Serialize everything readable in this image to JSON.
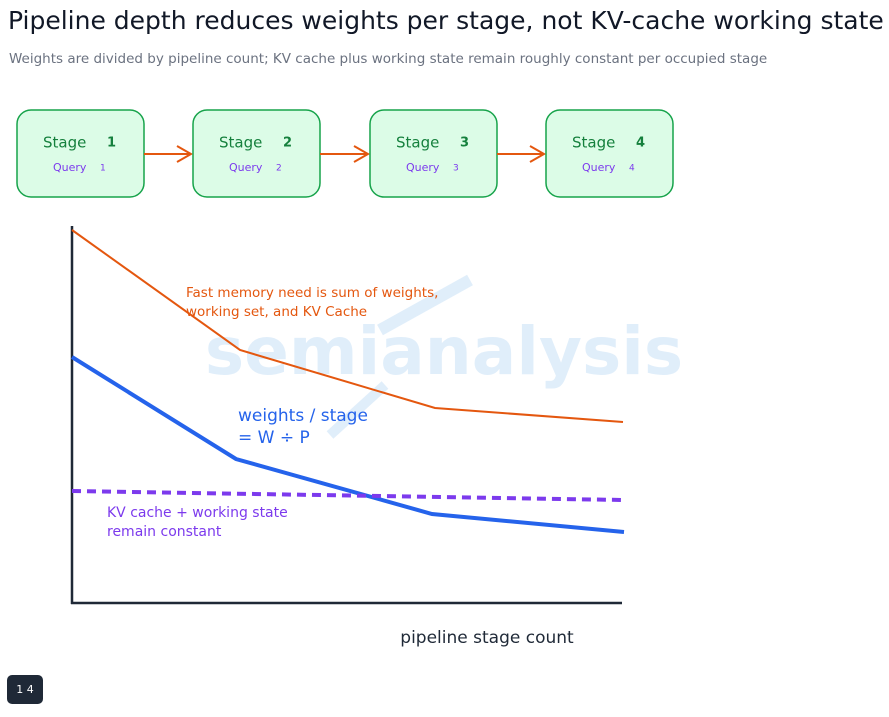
{
  "header": {
    "title": "Pipeline depth reduces weights per stage, not KV-cache working state",
    "subtitle": "Weights are divided by pipeline count; KV cache plus working state remain roughly constant per occupied stage"
  },
  "stages": [
    {
      "label": "Stage",
      "number": 1,
      "query": "Query",
      "query_number": 1
    },
    {
      "label": "Stage",
      "number": 2,
      "query": "Query",
      "query_number": 2
    },
    {
      "label": "Stage",
      "number": 3,
      "query": "Query",
      "query_number": 3
    },
    {
      "label": "Stage",
      "number": 4,
      "query": "Query",
      "query_number": 4
    }
  ],
  "chart": {
    "annotations": {
      "fast_memory": [
        "Fast memory need is sum of weights,",
        "working set, and KV Cache"
      ],
      "weights": [
        "weights / stage",
        "= W ÷ P"
      ],
      "kv_cache": [
        "KV cache + working state",
        "remain constant"
      ]
    },
    "x_label": "pipeline stage count",
    "watermark": "semianalysis"
  },
  "badge": "1 4"
}
